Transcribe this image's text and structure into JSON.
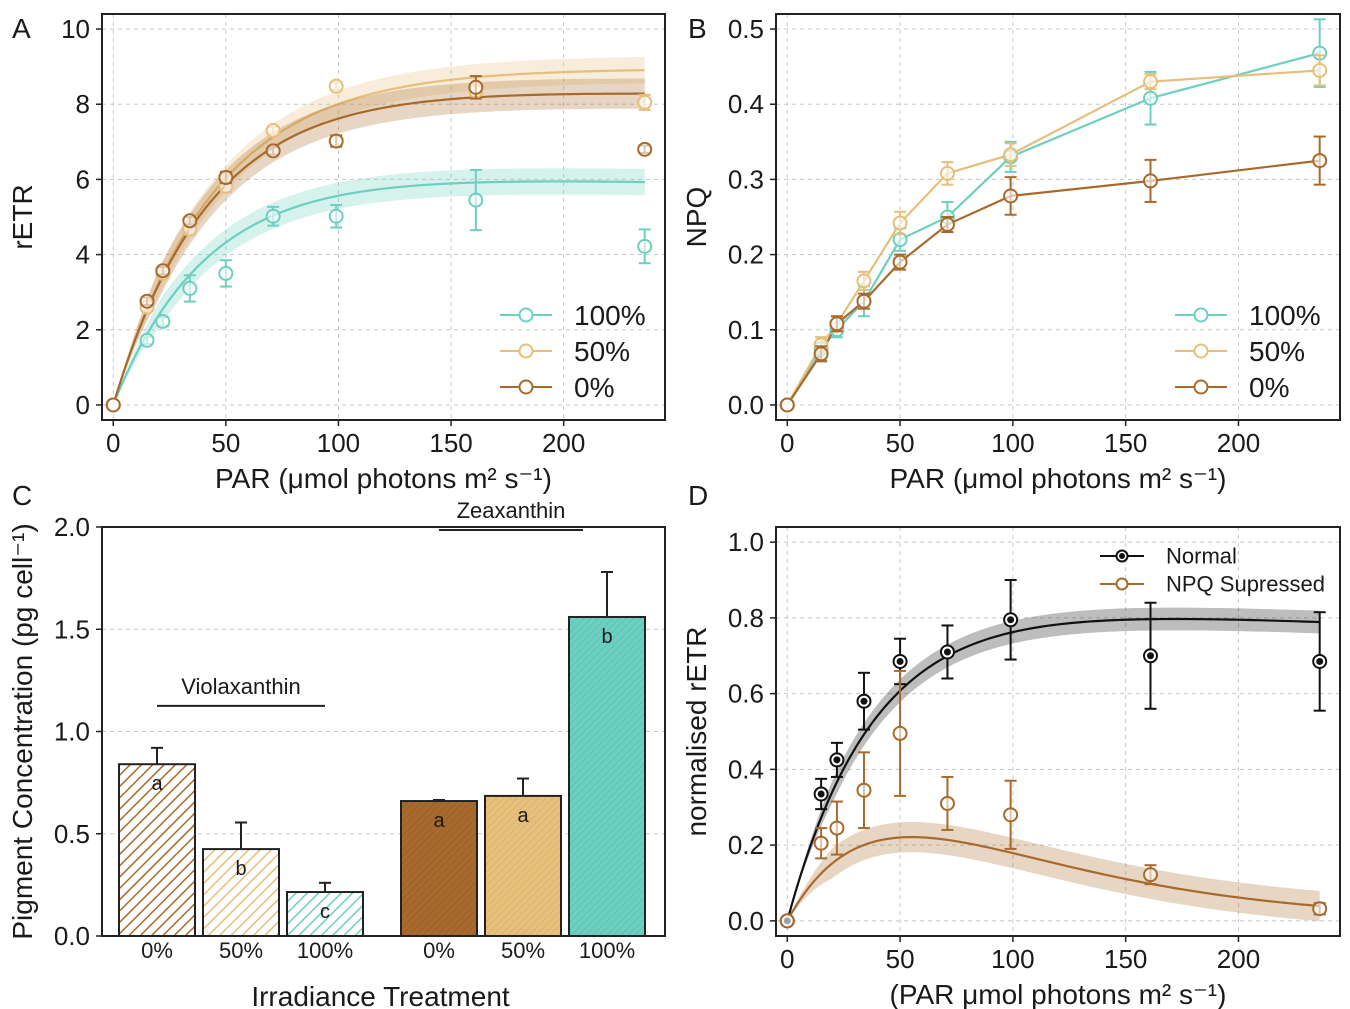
{
  "colors": {
    "teal": "#6dcfc0",
    "tan": "#e6bf7a",
    "brown": "#a86a2c",
    "black": "#111111",
    "grid": "#c8c8c8"
  },
  "chart_data": [
    {
      "panel": "A",
      "type": "line",
      "xlabel": "PAR (μmol photons m² s⁻¹)",
      "ylabel": "rETR",
      "xlim": [
        -5,
        245
      ],
      "ylim": [
        -0.4,
        10.4
      ],
      "xticks": [
        0,
        50,
        100,
        150,
        200
      ],
      "yticks": [
        0,
        2,
        4,
        6,
        8,
        10
      ],
      "grid": true,
      "legend": "bottom-right",
      "x": [
        0,
        15,
        22,
        34,
        50,
        71,
        99,
        161,
        236
      ],
      "series": [
        {
          "name": "100%",
          "color_key": "teal",
          "values": [
            0,
            1.72,
            2.22,
            3.1,
            3.5,
            5.02,
            5.02,
            5.45,
            4.22
          ],
          "errors": [
            0,
            0.1,
            0.12,
            0.35,
            0.35,
            0.25,
            0.3,
            0.8,
            0.45
          ],
          "fit": {
            "alpha": 0.15,
            "beta": 0.0013,
            "ps": 6.25,
            "band": 0.35
          }
        },
        {
          "name": "50%",
          "color_key": "tan",
          "values": [
            0,
            2.6,
            3.5,
            4.68,
            5.82,
            7.3,
            8.48,
            8.35,
            8.05
          ],
          "errors": [
            0,
            0.1,
            0.1,
            0.15,
            0.15,
            0.1,
            0.1,
            0.2,
            0.2
          ],
          "fit": {
            "alpha": 0.2,
            "beta": 0.0002,
            "ps": 9.0,
            "band": 0.35
          }
        },
        {
          "name": "0%",
          "color_key": "brown",
          "values": [
            0,
            2.76,
            3.57,
            4.9,
            6.05,
            6.76,
            7.02,
            8.45,
            6.8
          ],
          "errors": [
            0,
            0.1,
            0.1,
            0.1,
            0.15,
            0.1,
            0.15,
            0.3,
            0.1
          ],
          "fit": {
            "alpha": 0.2,
            "beta": 0.0008,
            "ps": 8.5,
            "band": 0.4
          }
        }
      ]
    },
    {
      "panel": "B",
      "type": "line",
      "xlabel": "PAR (μmol photons m² s⁻¹)",
      "ylabel": "NPQ",
      "xlim": [
        -5,
        245
      ],
      "ylim": [
        -0.02,
        0.52
      ],
      "xticks": [
        0,
        50,
        100,
        150,
        200
      ],
      "yticks": [
        0.0,
        0.1,
        0.2,
        0.3,
        0.4,
        0.5
      ],
      "ytick_labels": [
        "0.0",
        "0.1",
        "0.2",
        "0.3",
        "0.4",
        "0.5"
      ],
      "grid": true,
      "legend": "bottom-right",
      "x": [
        0,
        15,
        22,
        34,
        50,
        71,
        99,
        161,
        236
      ],
      "series": [
        {
          "name": "100%",
          "color_key": "teal",
          "values": [
            0,
            0.075,
            0.1,
            0.138,
            0.22,
            0.25,
            0.33,
            0.408,
            0.468
          ],
          "errors": [
            0,
            0.015,
            0.01,
            0.02,
            0.015,
            0.02,
            0.02,
            0.035,
            0.045
          ]
        },
        {
          "name": "50%",
          "color_key": "tan",
          "values": [
            0,
            0.08,
            0.108,
            0.165,
            0.242,
            0.308,
            0.333,
            0.43,
            0.445
          ],
          "errors": [
            0,
            0.01,
            0.01,
            0.012,
            0.015,
            0.015,
            0.015,
            0.01,
            0.02
          ]
        },
        {
          "name": "0%",
          "color_key": "brown",
          "values": [
            0,
            0.068,
            0.108,
            0.138,
            0.19,
            0.24,
            0.278,
            0.298,
            0.325
          ],
          "errors": [
            0,
            0.01,
            0.01,
            0.01,
            0.01,
            0.01,
            0.025,
            0.028,
            0.032
          ]
        }
      ]
    },
    {
      "panel": "C",
      "type": "bar",
      "xlabel": "Irradiance Treatment",
      "ylabel": "Pigment Concentration (pg cell⁻¹)",
      "ylim": [
        0,
        2.0
      ],
      "yticks": [
        0.0,
        0.5,
        1.0,
        1.5,
        2.0
      ],
      "ytick_labels": [
        "0.0",
        "0.5",
        "1.0",
        "1.5",
        "2.0"
      ],
      "grid": true,
      "groups": [
        {
          "name": "Violaxanthin",
          "pattern": "hatch",
          "categories": [
            "0%",
            "50%",
            "100%"
          ],
          "color_keys": [
            "brown",
            "tan",
            "teal"
          ],
          "values": [
            0.84,
            0.425,
            0.215
          ],
          "errors": [
            0.08,
            0.13,
            0.045
          ],
          "letters": [
            "a",
            "b",
            "c"
          ]
        },
        {
          "name": "Zeaxanthin",
          "pattern": "solid",
          "categories": [
            "0%",
            "50%",
            "100%"
          ],
          "color_keys": [
            "brown",
            "tan",
            "teal"
          ],
          "values": [
            0.66,
            0.685,
            1.56
          ],
          "errors": [
            0.005,
            0.085,
            0.22
          ],
          "letters": [
            "a",
            "a",
            "b"
          ]
        }
      ]
    },
    {
      "panel": "D",
      "type": "line",
      "xlabel": "(PAR μmol photons m² s⁻¹)",
      "ylabel": "normalised rETR",
      "xlim": [
        -5,
        245
      ],
      "ylim": [
        -0.04,
        1.04
      ],
      "xticks": [
        0,
        50,
        100,
        150,
        200
      ],
      "yticks": [
        0.0,
        0.2,
        0.4,
        0.6,
        0.8,
        1.0
      ],
      "ytick_labels": [
        "0.0",
        "0.2",
        "0.4",
        "0.6",
        "0.8",
        "1.0"
      ],
      "grid": true,
      "legend": "top-right",
      "x": [
        0,
        15,
        22,
        34,
        50,
        71,
        99,
        161,
        236
      ],
      "series": [
        {
          "name": "Normal",
          "color_key": "black",
          "filled": true,
          "values": [
            0,
            0.335,
            0.425,
            0.58,
            0.685,
            0.71,
            0.795,
            0.7,
            0.685
          ],
          "errors": [
            0,
            0.04,
            0.045,
            0.075,
            0.06,
            0.07,
            0.105,
            0.14,
            0.13
          ],
          "fit": {
            "alpha": 0.022,
            "beta": 0.00026,
            "ps": 0.85,
            "band": 0.03
          }
        },
        {
          "name": "NPQ Supressed",
          "color_key": "brown",
          "filled": false,
          "values": [
            0,
            0.205,
            0.245,
            0.345,
            0.495,
            0.31,
            0.28,
            0.122,
            0.032
          ],
          "errors": [
            0,
            0.04,
            0.07,
            0.1,
            0.165,
            0.07,
            0.09,
            0.025,
            0.015
          ],
          "fit": {
            "alpha": 0.011,
            "beta": 0.0185,
            "ps": 1.3,
            "band": 0.04
          }
        }
      ]
    }
  ],
  "panel_labels": [
    "A",
    "B",
    "C",
    "D"
  ]
}
